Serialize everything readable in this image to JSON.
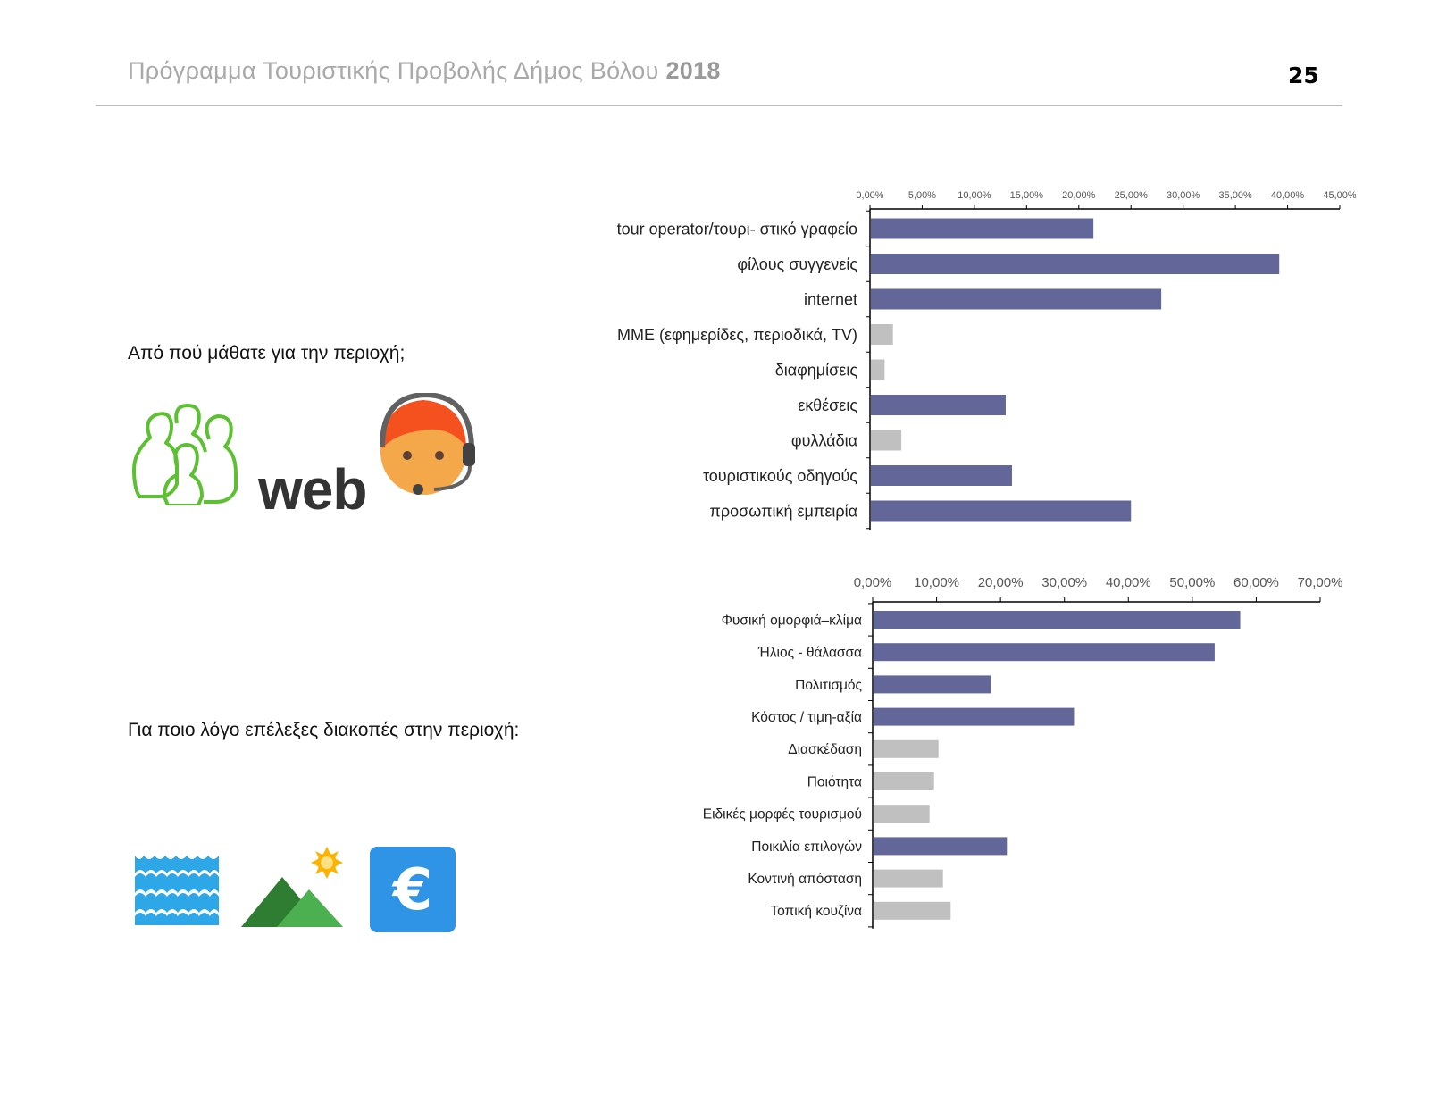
{
  "header": {
    "title": "Πρόγραμμα Τουριστικής Προβολής Δήμος Βόλου",
    "year": "2018",
    "page_number": "25"
  },
  "questions": {
    "q1": "Από πού μάθατε για την περιοχή;",
    "q2": "Για ποιο λόγο επέλεξες διακοπές στην περιοχή:"
  },
  "icons": {
    "people": "people-group-icon",
    "web_text": "web",
    "support": "support-agent-icon",
    "sea": "sea-waves-icon",
    "mountains": "mountains-sun-icon",
    "euro": "euro-icon",
    "euro_symbol": "€"
  },
  "colors": {
    "primary_bar": "#636698",
    "secondary_bar": "#c0c0c0",
    "people_icon": "#5cc130",
    "euro_bg": "#2f93e6",
    "waves": "#2ea7e8",
    "mountain_dark": "#2e7d32",
    "mountain_light": "#4caf50",
    "sun": "#ffb300",
    "face": "#f4a84a",
    "hair": "#f4511e"
  },
  "chart_data": [
    {
      "type": "bar",
      "orientation": "horizontal",
      "categories": [
        "tour operator/τουρι- στικό γραφείο",
        "φίλους συγγενείς",
        "internet",
        "ΜΜΕ (εφημερίδες, περιοδικά, TV)",
        "διαφημίσεις",
        "εκθέσεις",
        "φυλλάδια",
        "τουριστικούς οδηγούς",
        "προσωπική εμπειρία"
      ],
      "values": [
        21.4,
        39.2,
        27.9,
        2.2,
        1.4,
        13.0,
        3.0,
        13.6,
        25.0
      ],
      "highlight": [
        true,
        true,
        true,
        false,
        false,
        true,
        false,
        true,
        true
      ],
      "tick_labels": [
        "0,00%",
        "5,00%",
        "10,00%",
        "15,00%",
        "20,00%",
        "25,00%",
        "30,00%",
        "35,00%",
        "40,00%",
        "45,00%"
      ],
      "xlim": [
        0,
        45
      ],
      "axis_position": "top",
      "grid": false
    },
    {
      "type": "bar",
      "orientation": "horizontal",
      "categories": [
        "Φυσική ομορφιά–κλίμα",
        "Ήλιος - θάλασσα",
        "Πολιτισμός",
        "Κόστος / τιμη-αξία",
        "Διασκέδαση",
        "Ποιότητα",
        "Ειδικές μορφές τουρισμού",
        "Ποικιλία επιλογών",
        "Κοντινή απόσταση",
        "Τοπική κουζίνα"
      ],
      "values": [
        57.5,
        53.5,
        18.5,
        31.5,
        10.3,
        9.6,
        8.9,
        21.0,
        11.0,
        12.2
      ],
      "highlight": [
        true,
        true,
        true,
        true,
        false,
        false,
        false,
        true,
        false,
        false
      ],
      "tick_labels": [
        "0,00%",
        "10,00%",
        "20,00%",
        "30,00%",
        "40,00%",
        "50,00%",
        "60,00%",
        "70,00%"
      ],
      "xlim": [
        0,
        70
      ],
      "axis_position": "top",
      "grid": false
    }
  ]
}
